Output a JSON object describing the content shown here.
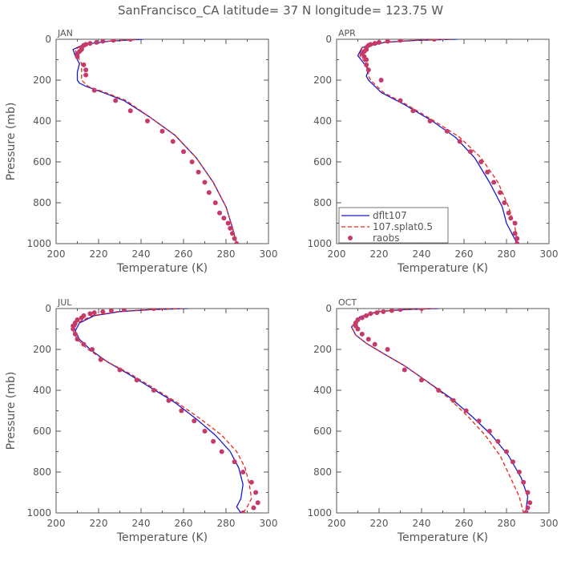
{
  "figure": {
    "title": "SanFrancisco_CA  latitude= 37 N longitude= 123.75 W"
  },
  "colors": {
    "dflt107": "#1a1acc",
    "splat": "#e8281e",
    "raobs": "#c43a6a",
    "axis": "#555555"
  },
  "legend": {
    "entries": [
      "dflt107",
      "107.splat0.5",
      "raobs"
    ],
    "placement": "lower-left of APR panel"
  },
  "chart_data": [
    {
      "type": "line",
      "panel": "JAN",
      "xlabel": "Temperature (K)",
      "ylabel": "Pressure (mb)",
      "xlim": [
        200,
        300
      ],
      "ylim": [
        1000,
        0
      ],
      "xticks": [
        "200",
        "220",
        "240",
        "260",
        "280",
        "300"
      ],
      "yticks": [
        "0",
        "200",
        "400",
        "600",
        "800",
        "1000"
      ],
      "series": [
        {
          "name": "dflt107",
          "style": "solid",
          "x": [
            241,
            225,
            213,
            208,
            209,
            211,
            210,
            210,
            211,
            214,
            222,
            232,
            244,
            256,
            266,
            274,
            280,
            283,
            285
          ],
          "y": [
            0,
            10,
            25,
            50,
            80,
            120,
            160,
            200,
            215,
            230,
            260,
            300,
            380,
            470,
            580,
            700,
            820,
            920,
            1000
          ]
        },
        {
          "name": "107.splat0.5",
          "style": "dashed",
          "x": [
            238,
            224,
            213,
            209,
            210,
            212,
            212,
            212,
            215,
            223,
            233,
            244,
            256,
            266,
            274,
            280,
            283,
            285
          ],
          "y": [
            0,
            10,
            25,
            50,
            80,
            120,
            160,
            200,
            230,
            260,
            300,
            380,
            470,
            580,
            700,
            820,
            920,
            1000
          ]
        },
        {
          "name": "raobs",
          "style": "markers",
          "x": [
            235,
            227,
            222,
            219,
            216,
            214,
            213,
            212,
            212,
            211,
            210,
            210,
            213,
            214,
            214,
            218,
            228,
            235,
            243,
            250,
            255,
            260,
            264,
            267,
            270,
            272,
            275,
            277,
            279,
            281,
            282,
            283,
            284,
            285
          ],
          "y": [
            0,
            5,
            10,
            15,
            20,
            25,
            30,
            40,
            50,
            60,
            70,
            85,
            125,
            150,
            175,
            250,
            300,
            350,
            400,
            450,
            500,
            550,
            600,
            650,
            700,
            750,
            800,
            850,
            875,
            900,
            925,
            950,
            975,
            1000
          ]
        }
      ]
    },
    {
      "type": "line",
      "panel": "APR",
      "xlabel": "Temperature (K)",
      "ylabel": "",
      "xlim": [
        200,
        300
      ],
      "ylim": [
        1000,
        0
      ],
      "xticks": [
        "200",
        "220",
        "240",
        "260",
        "280",
        "300"
      ],
      "yticks": [
        "0",
        "200",
        "400",
        "600",
        "800",
        "1000"
      ],
      "series": [
        {
          "name": "dflt107",
          "style": "solid",
          "x": [
            257,
            238,
            223,
            212,
            210,
            213,
            215,
            214,
            215,
            221,
            232,
            245,
            256,
            265,
            272,
            278,
            280,
            283,
            285
          ],
          "y": [
            0,
            5,
            15,
            40,
            80,
            120,
            150,
            180,
            200,
            260,
            320,
            400,
            480,
            580,
            700,
            820,
            900,
            960,
            1000
          ]
        },
        {
          "name": "107.splat0.5",
          "style": "dashed",
          "x": [
            254,
            236,
            222,
            212,
            211,
            214,
            215,
            215,
            216,
            222,
            233,
            246,
            258,
            268,
            276,
            281,
            284,
            285
          ],
          "y": [
            0,
            5,
            15,
            40,
            80,
            120,
            150,
            180,
            200,
            260,
            320,
            400,
            480,
            580,
            700,
            820,
            920,
            1000
          ]
        },
        {
          "name": "raobs",
          "style": "markers",
          "x": [
            246,
            230,
            224,
            220,
            218,
            216,
            215,
            214,
            214,
            213,
            212,
            213,
            214,
            214,
            215,
            221,
            230,
            236,
            244,
            252,
            258,
            263,
            268,
            271,
            274,
            277,
            279,
            281,
            282,
            284,
            284,
            285,
            285
          ],
          "y": [
            0,
            5,
            10,
            15,
            20,
            25,
            30,
            40,
            50,
            60,
            70,
            85,
            100,
            125,
            150,
            200,
            300,
            350,
            400,
            450,
            500,
            550,
            600,
            650,
            700,
            750,
            800,
            850,
            875,
            900,
            950,
            975,
            1000
          ]
        }
      ]
    },
    {
      "type": "line",
      "panel": "JUL",
      "xlabel": "Temperature (K)",
      "ylabel": "Pressure (mb)",
      "xlim": [
        200,
        300
      ],
      "ylim": [
        1000,
        0
      ],
      "xticks": [
        "200",
        "220",
        "240",
        "260",
        "280",
        "300"
      ],
      "yticks": [
        "0",
        "200",
        "400",
        "600",
        "800",
        "1000"
      ],
      "series": [
        {
          "name": "dflt107",
          "style": "solid",
          "x": [
            262,
            245,
            230,
            218,
            211,
            209,
            211,
            216,
            224,
            234,
            245,
            256,
            266,
            275,
            282,
            286,
            288,
            287,
            285,
            287
          ],
          "y": [
            0,
            5,
            15,
            35,
            70,
            110,
            150,
            200,
            260,
            320,
            390,
            460,
            540,
            620,
            700,
            780,
            860,
            930,
            970,
            1000
          ]
        },
        {
          "name": "107.splat0.5",
          "style": "dashed",
          "x": [
            260,
            243,
            229,
            217,
            210,
            208,
            210,
            215,
            224,
            235,
            246,
            257,
            268,
            278,
            285,
            289,
            291,
            292,
            290,
            288
          ],
          "y": [
            0,
            5,
            15,
            35,
            70,
            110,
            150,
            200,
            260,
            320,
            390,
            460,
            540,
            620,
            700,
            780,
            860,
            930,
            970,
            1000
          ]
        },
        {
          "name": "raobs",
          "style": "markers",
          "x": [
            246,
            232,
            226,
            222,
            218,
            216,
            213,
            212,
            210,
            209,
            208,
            208,
            209,
            210,
            213,
            217,
            221,
            230,
            238,
            246,
            253,
            259,
            265,
            270,
            274,
            278,
            284,
            288,
            292,
            294,
            295,
            293,
            288
          ],
          "y": [
            0,
            5,
            10,
            15,
            20,
            25,
            35,
            45,
            55,
            70,
            85,
            100,
            125,
            150,
            175,
            200,
            250,
            300,
            350,
            400,
            450,
            500,
            550,
            600,
            650,
            700,
            750,
            800,
            850,
            900,
            950,
            975,
            1000
          ]
        }
      ]
    },
    {
      "type": "line",
      "panel": "OCT",
      "xlabel": "Temperature (K)",
      "ylabel": "",
      "xlim": [
        200,
        300
      ],
      "ylim": [
        1000,
        0
      ],
      "xticks": [
        "200",
        "220",
        "240",
        "260",
        "280",
        "300"
      ],
      "yticks": [
        "0",
        "200",
        "400",
        "600",
        "800",
        "1000"
      ],
      "series": [
        {
          "name": "dflt107",
          "style": "solid",
          "x": [
            248,
            232,
            220,
            211,
            207,
            209,
            214,
            222,
            232,
            243,
            254,
            264,
            273,
            281,
            287,
            290,
            289
          ],
          "y": [
            0,
            5,
            15,
            40,
            90,
            130,
            170,
            220,
            280,
            360,
            440,
            530,
            620,
            720,
            830,
            920,
            1000
          ]
        },
        {
          "name": "107.splat0.5",
          "style": "dashed",
          "x": [
            246,
            231,
            219,
            211,
            207,
            209,
            214,
            222,
            232,
            243,
            253,
            262,
            270,
            277,
            282,
            286,
            288
          ],
          "y": [
            0,
            5,
            15,
            40,
            90,
            130,
            170,
            220,
            280,
            360,
            440,
            530,
            620,
            720,
            830,
            920,
            1000
          ]
        },
        {
          "name": "raobs",
          "style": "markers",
          "x": [
            240,
            230,
            226,
            222,
            219,
            216,
            214,
            212,
            210,
            209,
            209,
            210,
            212,
            215,
            218,
            224,
            232,
            240,
            248,
            255,
            261,
            267,
            272,
            276,
            280,
            283,
            286,
            288,
            290,
            291,
            290,
            289
          ],
          "y": [
            0,
            5,
            10,
            15,
            20,
            25,
            35,
            45,
            55,
            70,
            85,
            100,
            125,
            150,
            175,
            200,
            300,
            350,
            400,
            450,
            500,
            550,
            600,
            650,
            700,
            750,
            800,
            850,
            900,
            950,
            975,
            1000
          ]
        }
      ]
    }
  ]
}
